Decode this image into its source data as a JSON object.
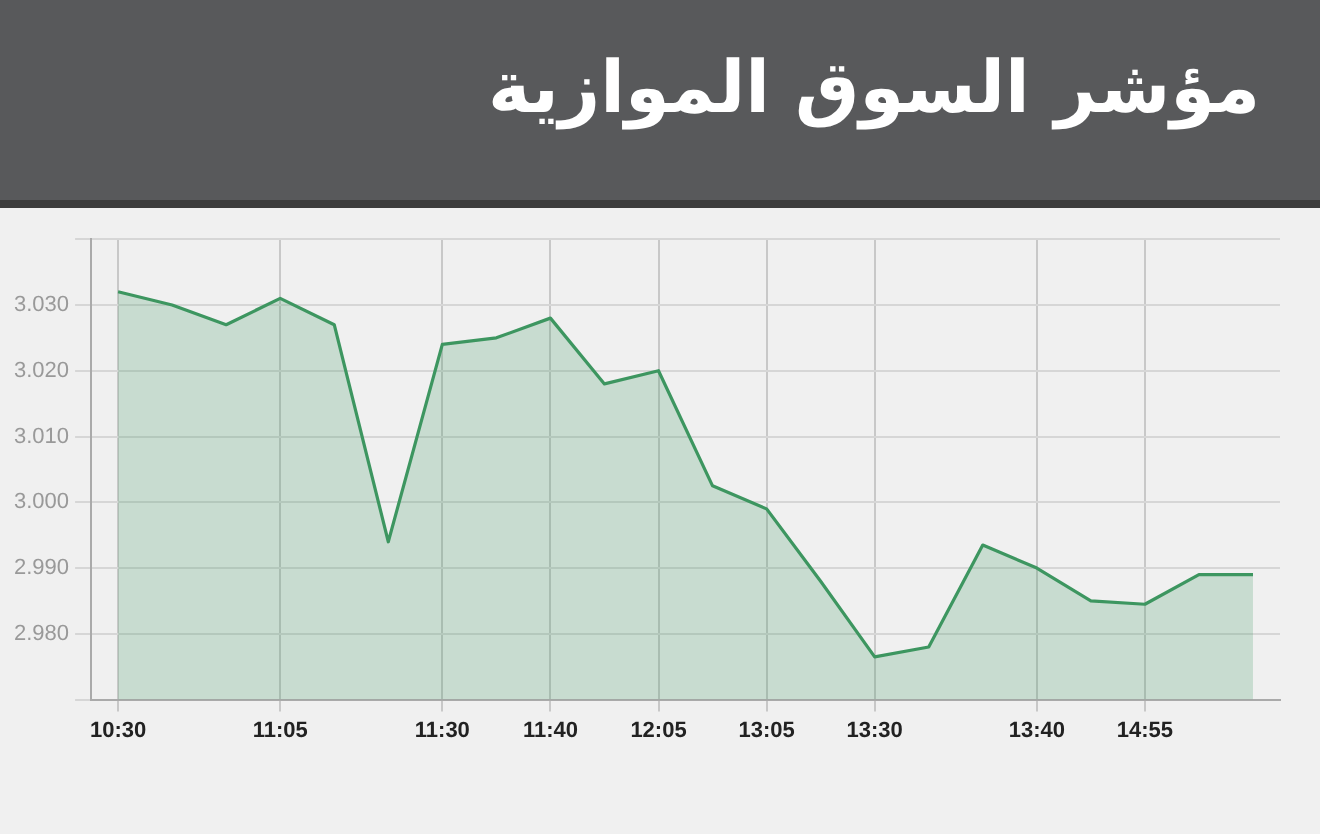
{
  "chart_data": {
    "type": "area",
    "title": "مؤشر السوق الموازية",
    "categories": [
      "10:30",
      null,
      null,
      "11:05",
      null,
      null,
      "11:30",
      null,
      "11:40",
      null,
      "12:05",
      null,
      "13:05",
      null,
      "13:30",
      null,
      null,
      "13:40",
      null,
      "14:55",
      null,
      null
    ],
    "series": [
      {
        "color": "#3d9660",
        "values": [
          3.032,
          3.03,
          3.027,
          3.031,
          3.027,
          2.994,
          3.024,
          3.025,
          3.028,
          3.018,
          3.02,
          3.0025,
          2.999,
          2.988,
          2.9765,
          2.978,
          2.9935,
          2.99,
          2.985,
          2.9845,
          2.989,
          2.989
        ]
      }
    ],
    "ylim": [
      2.97,
      3.04
    ],
    "yticks": [
      {
        "value": 2.97,
        "label": null
      },
      {
        "value": 2.98,
        "label": "2.980"
      },
      {
        "value": 2.99,
        "label": "2.990"
      },
      {
        "value": 3.0,
        "label": "3.000"
      },
      {
        "value": 3.01,
        "label": "3.010"
      },
      {
        "value": 3.02,
        "label": "3.020"
      },
      {
        "value": 3.03,
        "label": "3.030"
      },
      {
        "value": 3.04,
        "label": null
      }
    ],
    "grid": true,
    "legend": false
  }
}
